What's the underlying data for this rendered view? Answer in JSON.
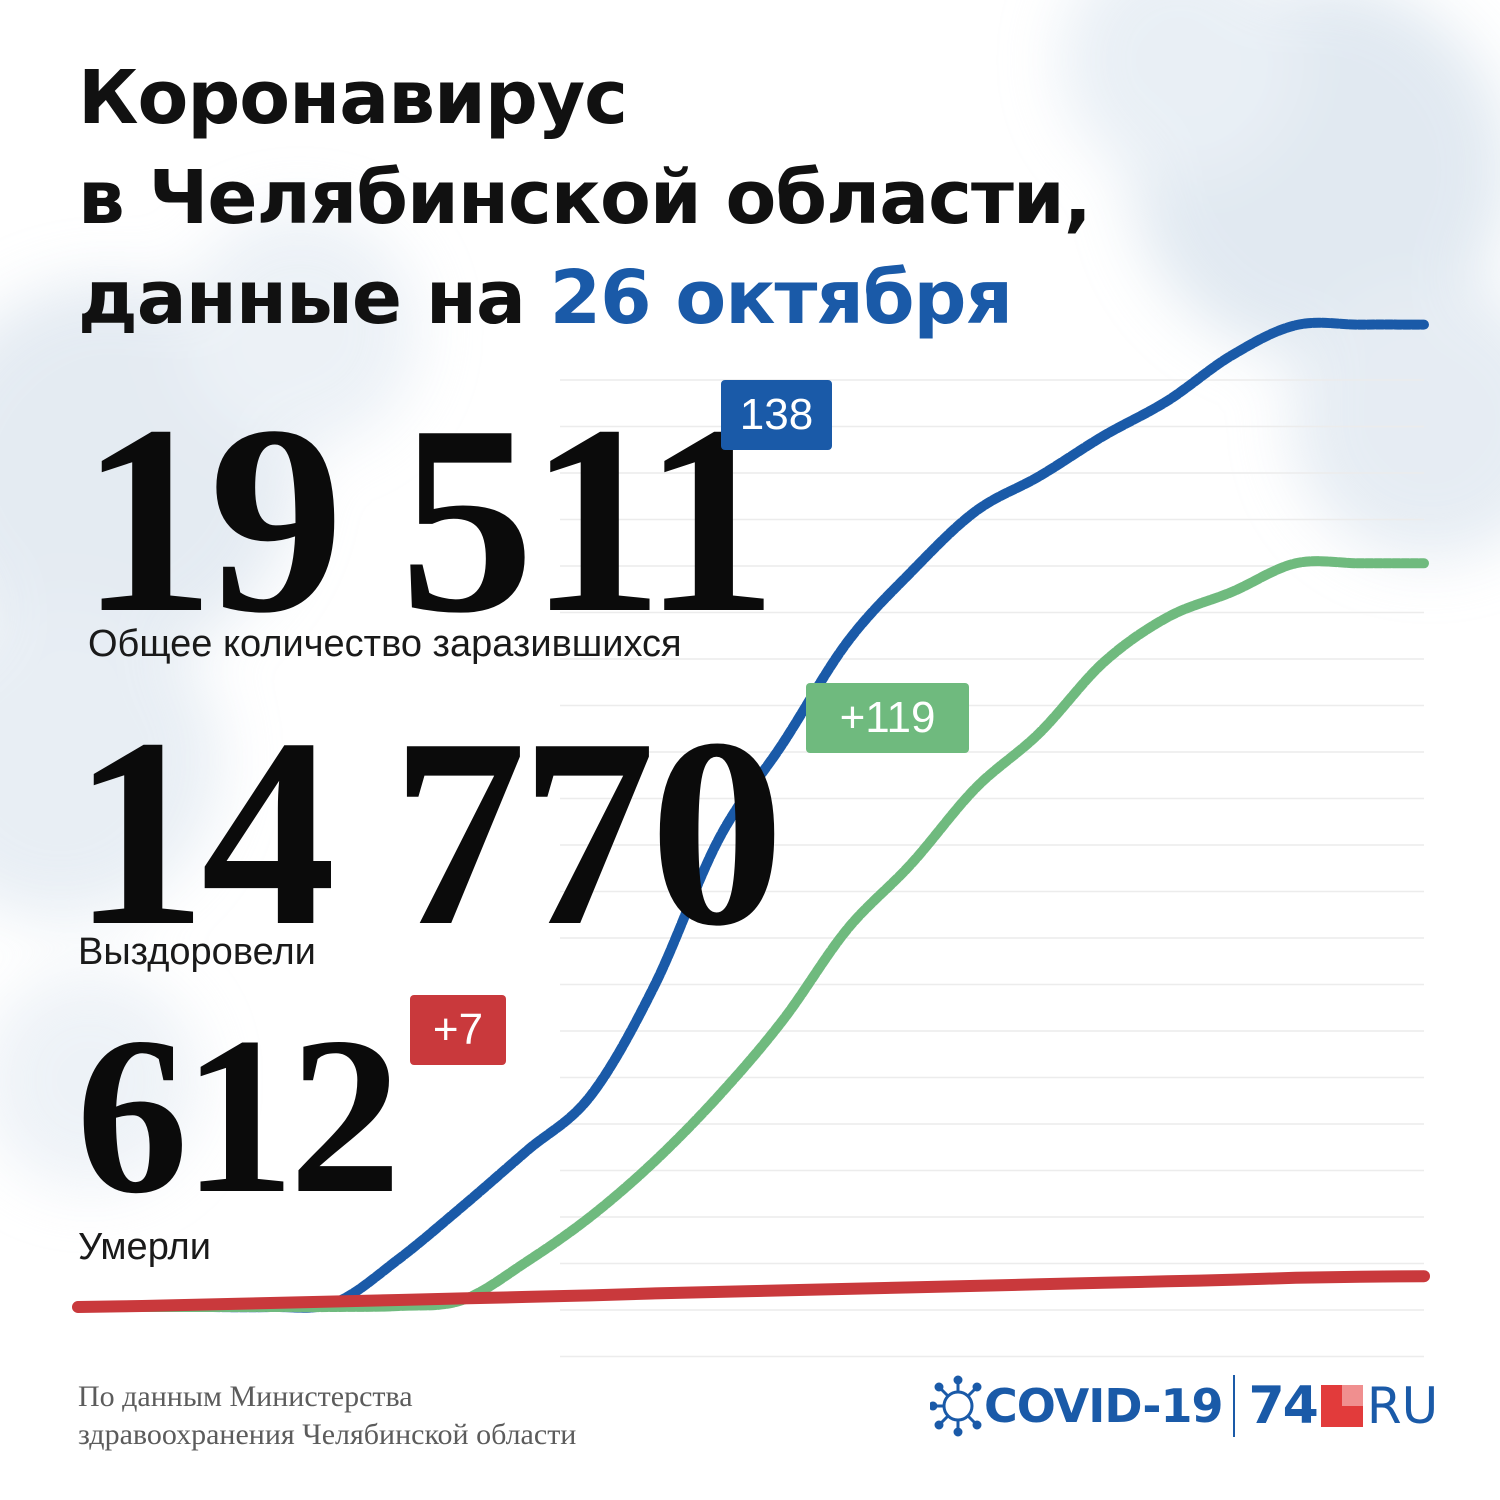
{
  "title": {
    "line1": "Коронавирус",
    "line2": "в Челябинской области,",
    "line3_prefix": "данные на ",
    "date": "26 октября"
  },
  "stats": {
    "infected": {
      "value": "19 511",
      "delta": "138",
      "caption": "Общее количество заразившихся"
    },
    "recovered": {
      "value": "14 770",
      "delta": "+119",
      "caption": "Выздоровели"
    },
    "deaths": {
      "value": "612",
      "delta": "+7",
      "caption": "Умерли"
    }
  },
  "source": {
    "line1": "По данным Министерства",
    "line2": "здравоохранения Челябинской области"
  },
  "logo": {
    "covid": "COVID-19",
    "num": "74",
    "ru": "RU"
  },
  "colors": {
    "infected": "#1a5aa8",
    "recovered": "#6fba7e",
    "deaths": "#c9393c",
    "title_accent": "#1a5aa8"
  },
  "icons": {
    "logo_virus": "virus-icon",
    "logo_square": "red-square-icon"
  },
  "chart_data": {
    "type": "line",
    "title": "",
    "xlabel": "",
    "ylabel": "",
    "x": [
      0,
      10,
      20,
      30,
      40,
      50,
      60,
      70,
      80,
      90,
      100,
      110,
      120,
      130,
      140,
      150,
      160,
      170,
      180,
      190,
      200,
      210
    ],
    "ylim": [
      0,
      20000
    ],
    "grid": true,
    "legend": "none",
    "series": [
      {
        "name": "",
        "color": "#1a5aa8",
        "values": [
          0,
          0,
          0,
          0,
          80,
          950,
          2000,
          3100,
          4200,
          6400,
          9300,
          11200,
          13200,
          14600,
          15800,
          16500,
          17300,
          18000,
          18900,
          19500,
          19511,
          19511
        ]
      },
      {
        "name": "",
        "color": "#6fba7e",
        "values": [
          0,
          0,
          0,
          0,
          0,
          20,
          140,
          900,
          1800,
          2900,
          4200,
          5700,
          7500,
          8800,
          10300,
          11400,
          12800,
          13700,
          14200,
          14770,
          14770,
          14770
        ]
      },
      {
        "name": "",
        "color": "#c9393c",
        "values": [
          0,
          20,
          50,
          80,
          110,
          140,
          170,
          200,
          230,
          270,
          300,
          330,
          360,
          390,
          420,
          450,
          480,
          510,
          540,
          580,
          600,
          612
        ]
      }
    ]
  }
}
